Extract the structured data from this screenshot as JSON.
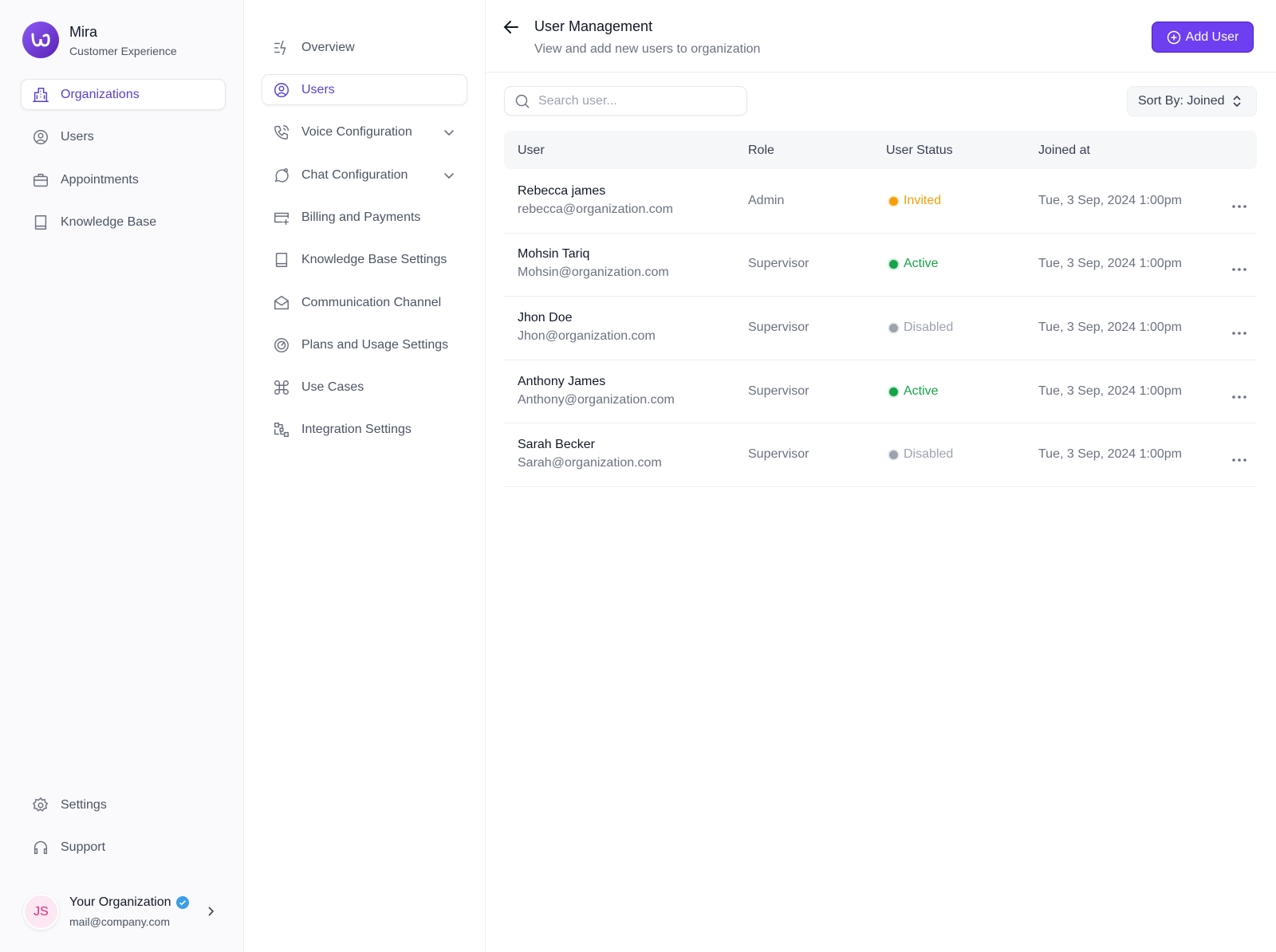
{
  "brand": {
    "name": "Mira",
    "subtitle": "Customer Experience"
  },
  "main_nav": [
    {
      "label": "Organizations",
      "active": true
    },
    {
      "label": "Users"
    },
    {
      "label": "Appointments"
    },
    {
      "label": "Knowledge Base"
    }
  ],
  "bottom_nav": [
    {
      "label": "Settings"
    },
    {
      "label": "Support"
    }
  ],
  "account": {
    "initials": "JS",
    "name": "Your Organization",
    "email": "mail@company.com"
  },
  "settings_nav": [
    {
      "label": "Overview"
    },
    {
      "label": "Users",
      "active": true
    },
    {
      "label": "Voice Configuration"
    },
    {
      "label": "Chat Configuration"
    },
    {
      "label": "Billing and Payments"
    },
    {
      "label": "Knowledge Base Settings"
    },
    {
      "label": "Communication Channel"
    },
    {
      "label": "Plans and Usage Settings"
    },
    {
      "label": "Use Cases"
    },
    {
      "label": "Integration Settings"
    }
  ],
  "header": {
    "title": "User Management",
    "subtitle": "View and add new users to organization",
    "button": "Add User"
  },
  "search": {
    "placeholder": "Search user..."
  },
  "sort": {
    "label": "Sort By: Joined"
  },
  "table": {
    "columns": [
      "User",
      "Role",
      "User Status",
      "Joined at"
    ],
    "rows": [
      {
        "name": "Rebecca james",
        "email": "rebecca@organization.com",
        "role": "Admin",
        "status": "Invited",
        "color": "#f59e0b",
        "joined": "Tue, 3 Sep, 2024 1:00pm"
      },
      {
        "name": "Mohsin Tariq",
        "email": "Mohsin@organization.com",
        "role": "Supervisor",
        "status": "Active",
        "color": "#16a34a",
        "joined": "Tue, 3 Sep, 2024 1:00pm"
      },
      {
        "name": "Jhon Doe",
        "email": "Jhon@organization.com",
        "role": "Supervisor",
        "status": "Disabled",
        "color": "#9ca3af",
        "joined": "Tue, 3 Sep, 2024 1:00pm"
      },
      {
        "name": "Anthony James",
        "email": "Anthony@organization.com",
        "role": "Supervisor",
        "status": "Active",
        "color": "#16a34a",
        "joined": "Tue, 3 Sep, 2024 1:00pm"
      },
      {
        "name": "Sarah Becker",
        "email": "Sarah@organization.com",
        "role": "Supervisor",
        "status": "Disabled",
        "color": "#9ca3af",
        "joined": "Tue, 3 Sep, 2024 1:00pm"
      }
    ]
  }
}
